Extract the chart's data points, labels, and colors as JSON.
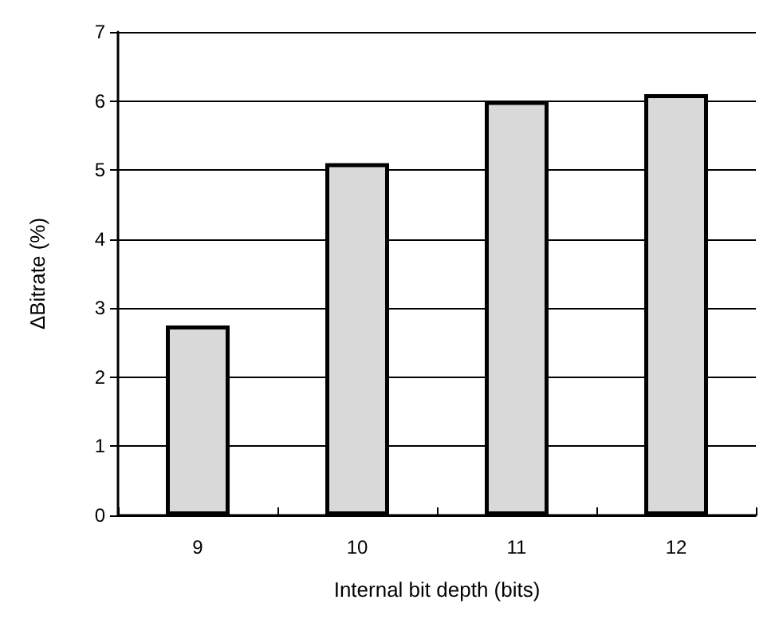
{
  "chart_data": {
    "type": "bar",
    "xlabel": "Internal bit depth (bits)",
    "ylabel": "ΔBitrate (%)",
    "categories": [
      "9",
      "10",
      "11",
      "12"
    ],
    "values": [
      2.75,
      5.1,
      6.0,
      6.1
    ],
    "color": "#d9d9d9",
    "ylim": [
      0,
      7
    ],
    "yticks": [
      0,
      1,
      2,
      3,
      4,
      5,
      6,
      7
    ],
    "grid": "y"
  }
}
